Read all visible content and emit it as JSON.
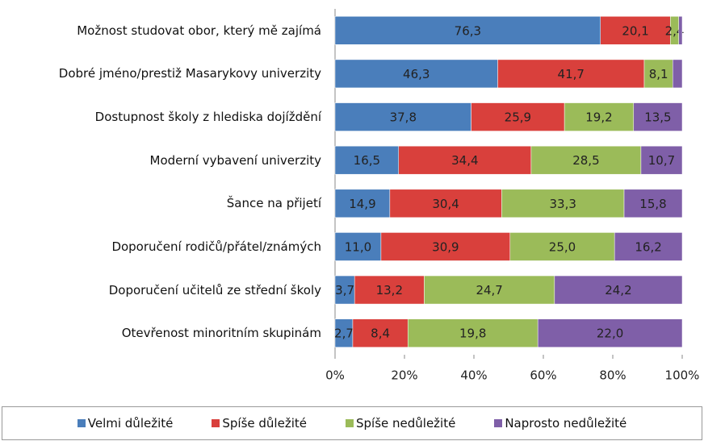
{
  "chart_data": {
    "type": "bar",
    "orientation": "horizontal",
    "stacking": "percent",
    "categories": [
      "Možnost studovat obor, který mě zajímá",
      "Dobré jméno/prestiž Masarykovy univerzity",
      "Dostupnost školy z hlediska dojíždění",
      "Moderní vybavení univerzity",
      "Šance na přijetí",
      "Doporučení rodičů/přátel/známých",
      "Doporučení učitelů ze střední školy",
      "Otevřenost minoritním skupinám"
    ],
    "series": [
      {
        "name": "Velmi důležité",
        "color": "#4a7ebb",
        "values": [
          76.3,
          46.3,
          37.8,
          16.5,
          14.9,
          11.0,
          3.7,
          2.7
        ],
        "value_labels": [
          "76,3",
          "46,3",
          "37,8",
          "16,5",
          "14,9",
          "11,0",
          "3,7",
          "2,7"
        ]
      },
      {
        "name": "Spíše důležité",
        "color": "#d9403c",
        "values": [
          20.1,
          41.7,
          25.9,
          34.4,
          30.4,
          30.9,
          13.2,
          8.4
        ],
        "value_labels": [
          "20,1",
          "41,7",
          "25,9",
          "34,4",
          "30,4",
          "30,9",
          "13,2",
          "8,4"
        ]
      },
      {
        "name": "Spíše nedůležité",
        "color": "#9bbb59",
        "values": [
          2.4,
          8.1,
          19.2,
          28.5,
          33.3,
          25.0,
          24.7,
          19.8
        ],
        "value_labels": [
          "2,4",
          "8,1",
          "19,2",
          "28,5",
          "33,3",
          "25,0",
          "24,7",
          "19,8"
        ]
      },
      {
        "name": "Naprosto nedůležité",
        "color": "#7f5fa8",
        "values": [
          1.0,
          2.7,
          13.5,
          10.7,
          15.8,
          16.2,
          24.2,
          22.0
        ],
        "value_labels": [
          null,
          null,
          "13,5",
          "10,7",
          "15,8",
          "16,2",
          "24,2",
          "22,0"
        ]
      }
    ],
    "xlim": [
      0,
      100
    ],
    "xticks": [
      {
        "value": 0,
        "label": "0%"
      },
      {
        "value": 20,
        "label": "20%"
      },
      {
        "value": 40,
        "label": "40%"
      },
      {
        "value": 60,
        "label": "60%"
      },
      {
        "value": 80,
        "label": "80%"
      },
      {
        "value": 100,
        "label": "100%"
      }
    ],
    "legend": "bottom"
  }
}
